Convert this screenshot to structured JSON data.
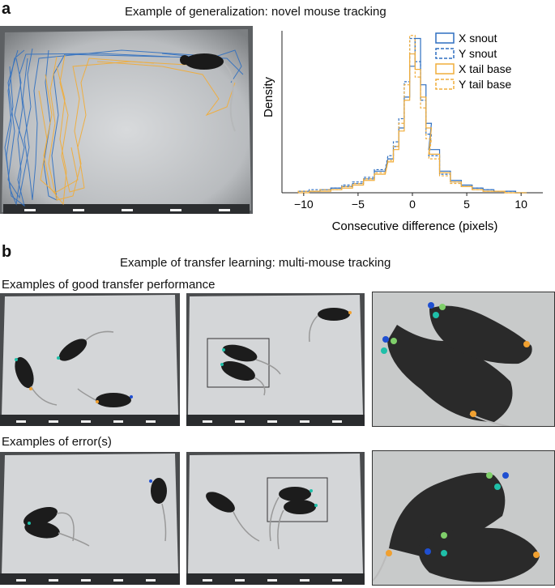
{
  "panel_a": {
    "letter": "a",
    "title": "Example of generalization: novel mouse tracking"
  },
  "panel_b": {
    "letter": "b",
    "title": "Example of transfer learning: multi-mouse tracking",
    "row1_label": "Examples of good transfer performance",
    "row2_label": "Examples of error(s)"
  },
  "colors": {
    "snout": "#2f6fc0",
    "tail": "#f0ad3c",
    "kp_blue": "#1f4fd1",
    "kp_teal": "#1fbfa8",
    "kp_green": "#7fcf6a",
    "kp_orange": "#f0a030"
  },
  "chart_data": {
    "type": "histogram",
    "xlabel": "Consecutive difference (pixels)",
    "ylabel": "Density",
    "xlim": [
      -12,
      12
    ],
    "xticks": [
      -10,
      -5,
      0,
      5,
      10
    ],
    "grid": false,
    "legend_position": "top-right",
    "legend": [
      {
        "name": "X snout",
        "color": "#2f6fc0",
        "style": "solid"
      },
      {
        "name": "Y snout",
        "color": "#2f6fc0",
        "style": "dashed"
      },
      {
        "name": "X tail base",
        "color": "#f0ad3c",
        "style": "solid"
      },
      {
        "name": "Y tail base",
        "color": "#f0ad3c",
        "style": "dashed"
      }
    ],
    "bin_centers": [
      -10,
      -9,
      -8,
      -7,
      -6,
      -5,
      -4,
      -3,
      -2,
      -1.5,
      -1,
      -0.5,
      0,
      0.5,
      1,
      1.5,
      2,
      3,
      4,
      5,
      6,
      7,
      8,
      9,
      10
    ],
    "series": [
      {
        "name": "X snout",
        "values": [
          0.01,
          0.01,
          0.02,
          0.03,
          0.04,
          0.06,
          0.09,
          0.14,
          0.22,
          0.3,
          0.42,
          0.62,
          0.82,
          1.0,
          0.7,
          0.45,
          0.28,
          0.14,
          0.08,
          0.05,
          0.03,
          0.02,
          0.01,
          0.01,
          0.0
        ]
      },
      {
        "name": "Y snout",
        "values": [
          0.01,
          0.02,
          0.02,
          0.03,
          0.05,
          0.07,
          0.1,
          0.15,
          0.24,
          0.33,
          0.48,
          0.72,
          1.0,
          0.85,
          0.6,
          0.38,
          0.24,
          0.12,
          0.07,
          0.04,
          0.03,
          0.02,
          0.01,
          0.01,
          0.0
        ]
      },
      {
        "name": "X tail base",
        "values": [
          0.0,
          0.01,
          0.01,
          0.02,
          0.03,
          0.05,
          0.08,
          0.12,
          0.2,
          0.28,
          0.4,
          0.6,
          0.9,
          0.8,
          0.62,
          0.42,
          0.25,
          0.13,
          0.07,
          0.04,
          0.02,
          0.01,
          0.01,
          0.0,
          0.0
        ]
      },
      {
        "name": "Y tail base",
        "values": [
          0.01,
          0.01,
          0.02,
          0.02,
          0.04,
          0.06,
          0.09,
          0.13,
          0.21,
          0.3,
          0.45,
          0.7,
          1.02,
          0.75,
          0.55,
          0.35,
          0.22,
          0.11,
          0.06,
          0.04,
          0.02,
          0.01,
          0.01,
          0.0,
          0.0
        ]
      }
    ]
  }
}
